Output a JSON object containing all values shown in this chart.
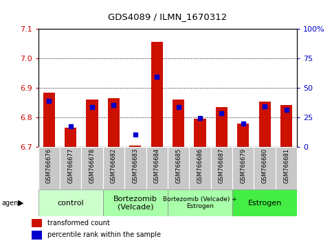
{
  "title": "GDS4089 / ILMN_1670312",
  "samples": [
    "GSM766676",
    "GSM766677",
    "GSM766678",
    "GSM766682",
    "GSM766683",
    "GSM766684",
    "GSM766685",
    "GSM766686",
    "GSM766687",
    "GSM766679",
    "GSM766680",
    "GSM766681"
  ],
  "red_values": [
    6.885,
    6.765,
    6.86,
    6.865,
    6.705,
    7.058,
    6.86,
    6.795,
    6.835,
    6.78,
    6.855,
    6.843
  ],
  "blue_values": [
    6.856,
    6.771,
    6.836,
    6.842,
    6.743,
    6.937,
    6.836,
    6.798,
    6.815,
    6.779,
    6.838,
    6.826
  ],
  "ylim": [
    6.7,
    7.1
  ],
  "yticks_left": [
    6.7,
    6.8,
    6.9,
    7.0,
    7.1
  ],
  "yticks_right": [
    0,
    25,
    50,
    75,
    100
  ],
  "ylabel_left_color": "#cc0000",
  "ylabel_right_color": "#0000cc",
  "bar_color": "#cc1100",
  "blue_color": "#0000cc",
  "agent_groups": [
    {
      "label": "control",
      "start": 0,
      "end": 3,
      "color": "#ccffcc"
    },
    {
      "label": "Bortezomib\n(Velcade)",
      "start": 3,
      "end": 6,
      "color": "#aaffaa"
    },
    {
      "label": "Bortezomib (Velcade) +\nEstrogen",
      "start": 6,
      "end": 9,
      "color": "#aaffaa"
    },
    {
      "label": "Estrogen",
      "start": 9,
      "end": 12,
      "color": "#44ee44"
    }
  ],
  "legend_items": [
    {
      "label": "transformed count",
      "color": "#cc1100"
    },
    {
      "label": "percentile rank within the sample",
      "color": "#0000cc"
    }
  ],
  "bar_width": 0.55,
  "blue_marker_size": 4,
  "figsize": [
    4.83,
    3.54
  ],
  "dpi": 100
}
